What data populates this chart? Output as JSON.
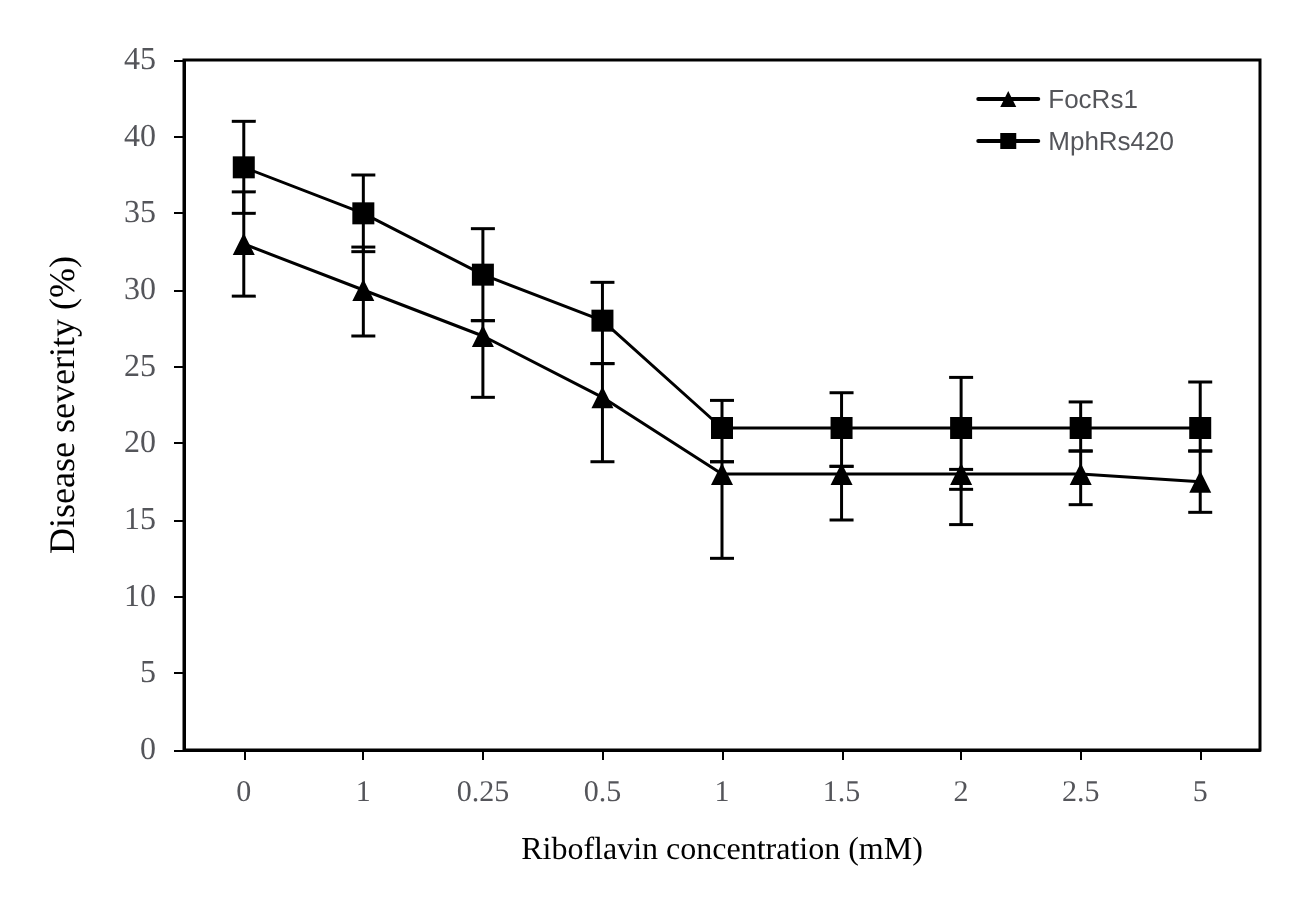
{
  "chart_data": {
    "type": "line",
    "xlabel": "Riboflavin concentration (mM)",
    "ylabel": "Disease severity (%)",
    "categories": [
      "0",
      "1",
      "0.25",
      "0.5",
      "1",
      "1.5",
      "2",
      "2.5",
      "5"
    ],
    "ylim": [
      0,
      45
    ],
    "yticks": [
      0,
      5,
      10,
      15,
      20,
      25,
      30,
      35,
      40,
      45
    ],
    "grid": false,
    "legend": "top right",
    "line_style": "solid",
    "series": [
      {
        "name": "FocRs1",
        "color": "#000000",
        "marker": "triangle",
        "values": [
          33,
          30,
          27,
          23,
          18,
          18,
          18,
          18,
          17.5
        ],
        "errors": [
          [
            29.6,
            36.4
          ],
          [
            27,
            32.8
          ],
          [
            23,
            28
          ],
          [
            18.8,
            25.2
          ],
          [
            12.5,
            18.8
          ],
          [
            15,
            18.5
          ],
          [
            14.7,
            18.3
          ],
          [
            16,
            19.5
          ],
          [
            15.5,
            19.5
          ]
        ]
      },
      {
        "name": "MphRs420",
        "color": "#000000",
        "marker": "square",
        "values": [
          38,
          35,
          31,
          28,
          21,
          21,
          21,
          21,
          21
        ],
        "errors": [
          [
            35,
            41
          ],
          [
            32.5,
            37.5
          ],
          [
            28,
            34
          ],
          [
            25.2,
            30.5
          ],
          [
            18.8,
            22.8
          ],
          [
            18.5,
            23.3
          ],
          [
            17,
            24.3
          ],
          [
            19.5,
            22.7
          ],
          [
            19.5,
            24
          ]
        ]
      }
    ]
  }
}
